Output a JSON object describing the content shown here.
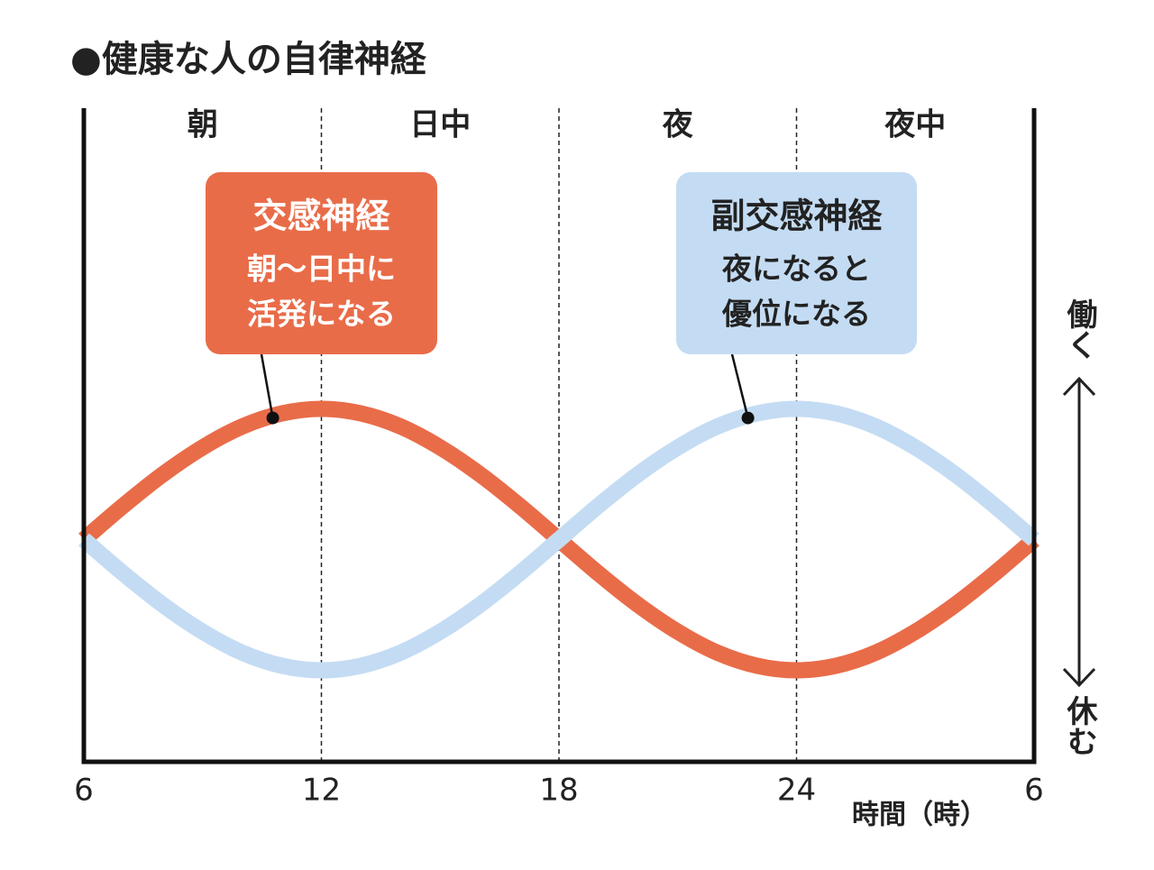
{
  "chart_data": {
    "type": "line",
    "title": "●健康な人の自律神経",
    "x_label": "時間（時）",
    "periods": [
      "朝",
      "日中",
      "夜",
      "夜中"
    ],
    "y_labels": {
      "top": "働く",
      "bottom": "休む"
    },
    "x": [
      6,
      7,
      8,
      9,
      10,
      11,
      12,
      13,
      14,
      15,
      16,
      17,
      18,
      19,
      20,
      21,
      22,
      23,
      24,
      25,
      26,
      27,
      28,
      29,
      30
    ],
    "xlim": [
      6,
      30
    ],
    "xticks": [
      6,
      12,
      18,
      24,
      {
        "value": 30,
        "label": "6"
      }
    ],
    "xgrid": true,
    "ylim": [
      0,
      100
    ],
    "series": [
      {
        "name": "交感神経",
        "color": "#e96c49",
        "lines": [
          "朝〜日中に",
          "活発になる"
        ],
        "callout_x": 11,
        "values": [
          34,
          39.2,
          44,
          48.1,
          51.3,
          53.3,
          54,
          53.3,
          51.3,
          48.1,
          44,
          39.2,
          34,
          28.8,
          24,
          19.9,
          16.7,
          14.7,
          14,
          14.7,
          16.7,
          19.9,
          24,
          28.8,
          34
        ]
      },
      {
        "name": "副交感神経",
        "color": "#c4dcf3",
        "lines": [
          "夜になると",
          "優位になる"
        ],
        "callout_x": 23,
        "values": [
          34,
          28.8,
          24,
          19.9,
          16.7,
          14.7,
          14,
          14.7,
          16.7,
          19.9,
          24,
          28.8,
          34,
          39.2,
          44,
          48.1,
          51.3,
          53.3,
          54,
          53.3,
          51.3,
          48.1,
          44,
          39.2,
          34
        ]
      }
    ]
  }
}
